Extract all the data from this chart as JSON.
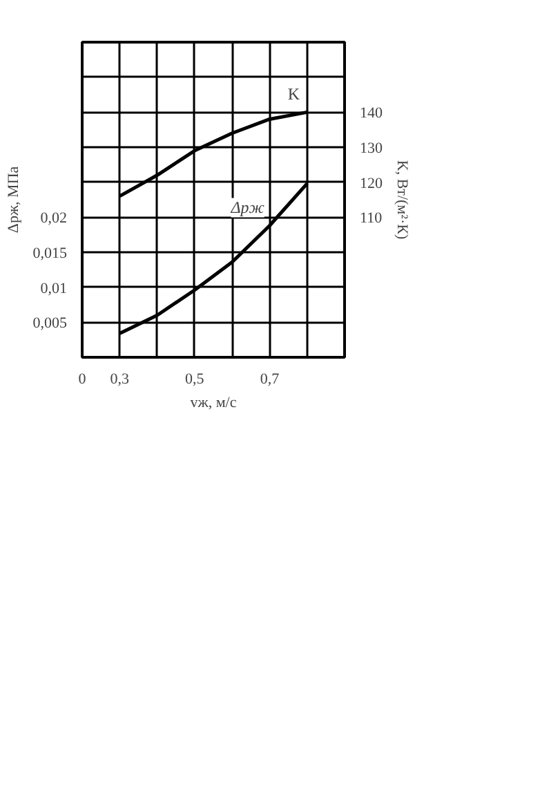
{
  "chart_data": {
    "type": "line",
    "xlabel": "vж, м/с",
    "ylabel": "Δpж, МПа",
    "y2label": "K, Вт/(м²·К)",
    "x": [
      0.3,
      0.4,
      0.5,
      0.6,
      0.7,
      0.8
    ],
    "series": [
      {
        "name": "K",
        "color": "#000000",
        "axis": "y2",
        "values": [
          116,
          122,
          129,
          134,
          138,
          140
        ]
      },
      {
        "name": "Δpж",
        "color": "#000000",
        "values": [
          0.0034,
          0.006,
          0.0096,
          0.0136,
          0.0188,
          0.0248
        ]
      }
    ],
    "xlim": [
      0.2,
      0.9
    ],
    "xticks": [
      {
        "value": 0.2,
        "label": "0"
      },
      {
        "value": 0.3,
        "label": "0,3"
      },
      {
        "value": 0.4,
        "label": null
      },
      {
        "value": 0.5,
        "label": "0,5"
      },
      {
        "value": 0.6,
        "label": null
      },
      {
        "value": 0.7,
        "label": "0,7"
      },
      {
        "value": 0.8,
        "label": null
      },
      {
        "value": 0.9,
        "label": null
      }
    ],
    "ylim": [
      0,
      0.045
    ],
    "yticks": [
      {
        "value": 0,
        "label": null
      },
      {
        "value": 0.005,
        "label": "0,005"
      },
      {
        "value": 0.01,
        "label": "0,01"
      },
      {
        "value": 0.015,
        "label": "0,015"
      },
      {
        "value": 0.02,
        "label": "0,02"
      },
      {
        "value": 0.025,
        "label": null
      },
      {
        "value": 0.03,
        "label": null
      },
      {
        "value": 0.035,
        "label": null
      },
      {
        "value": 0.04,
        "label": null
      },
      {
        "value": 0.045,
        "label": null
      }
    ],
    "y2lim": [
      70,
      160
    ],
    "y2ticks": [
      110,
      120,
      130,
      140
    ],
    "grid": true,
    "marker": "none",
    "line_style": "solid"
  }
}
